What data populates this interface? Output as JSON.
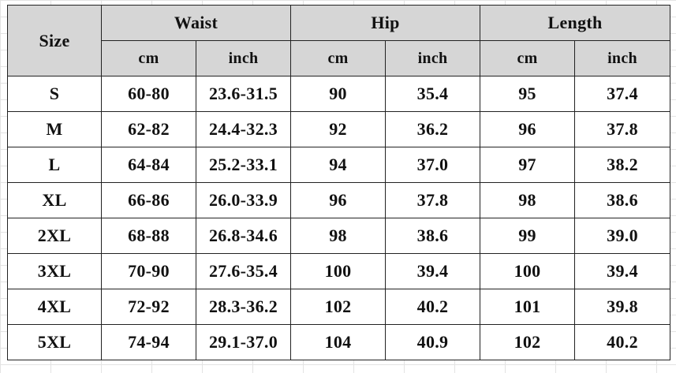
{
  "table": {
    "size_header": "Size",
    "groups": [
      "Waist",
      "Hip",
      "Length"
    ],
    "units": [
      "cm",
      "inch",
      "cm",
      "inch",
      "cm",
      "inch"
    ],
    "rows": [
      [
        "S",
        "60-80",
        "23.6-31.5",
        "90",
        "35.4",
        "95",
        "37.4"
      ],
      [
        "M",
        "62-82",
        "24.4-32.3",
        "92",
        "36.2",
        "96",
        "37.8"
      ],
      [
        "L",
        "64-84",
        "25.2-33.1",
        "94",
        "37.0",
        "97",
        "38.2"
      ],
      [
        "XL",
        "66-86",
        "26.0-33.9",
        "96",
        "37.8",
        "98",
        "38.6"
      ],
      [
        "2XL",
        "68-88",
        "26.8-34.6",
        "98",
        "38.6",
        "99",
        "39.0"
      ],
      [
        "3XL",
        "70-90",
        "27.6-35.4",
        "100",
        "39.4",
        "100",
        "39.4"
      ],
      [
        "4XL",
        "72-92",
        "28.3-36.2",
        "102",
        "40.2",
        "101",
        "39.8"
      ],
      [
        "5XL",
        "74-94",
        "29.1-37.0",
        "104",
        "40.9",
        "102",
        "40.2"
      ]
    ]
  }
}
